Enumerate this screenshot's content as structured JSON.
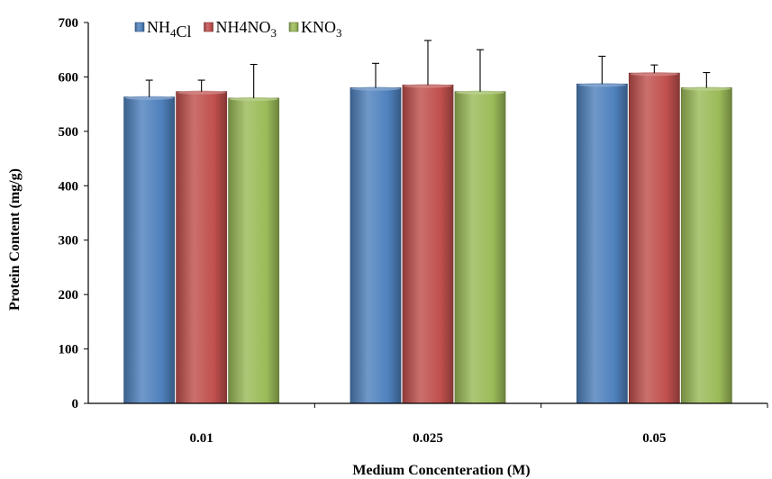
{
  "chart_data": {
    "type": "bar",
    "title": "",
    "xlabel": "Medium Concenteration (M)",
    "ylabel": "Protein Content (mg/g)",
    "ylim": [
      0,
      700
    ],
    "yticks": [
      "0",
      "100",
      "200",
      "300",
      "400",
      "500",
      "600",
      "700"
    ],
    "grid": false,
    "legend_position": "top-left",
    "categories": [
      "0.01",
      "0.025",
      "0.05"
    ],
    "series": [
      {
        "name": "NH4Cl",
        "legend_parts": [
          {
            "t": "NH"
          },
          {
            "t": "4",
            "sub": true
          },
          {
            "t": "Cl"
          }
        ],
        "color": "#4F81BD",
        "values": [
          563,
          580,
          587
        ],
        "errors": [
          31,
          45,
          51
        ]
      },
      {
        "name": "NH4NO3",
        "legend_parts": [
          {
            "t": "NH4NO"
          },
          {
            "t": "3",
            "sub": true
          }
        ],
        "color": "#C0504D",
        "values": [
          573,
          585,
          607
        ],
        "errors": [
          21,
          82,
          15
        ]
      },
      {
        "name": "KNO3",
        "legend_parts": [
          {
            "t": "KNO"
          },
          {
            "t": "3",
            "sub": true
          }
        ],
        "color": "#9BBB59",
        "values": [
          561,
          573,
          580
        ],
        "errors": [
          62,
          77,
          28
        ]
      }
    ]
  }
}
